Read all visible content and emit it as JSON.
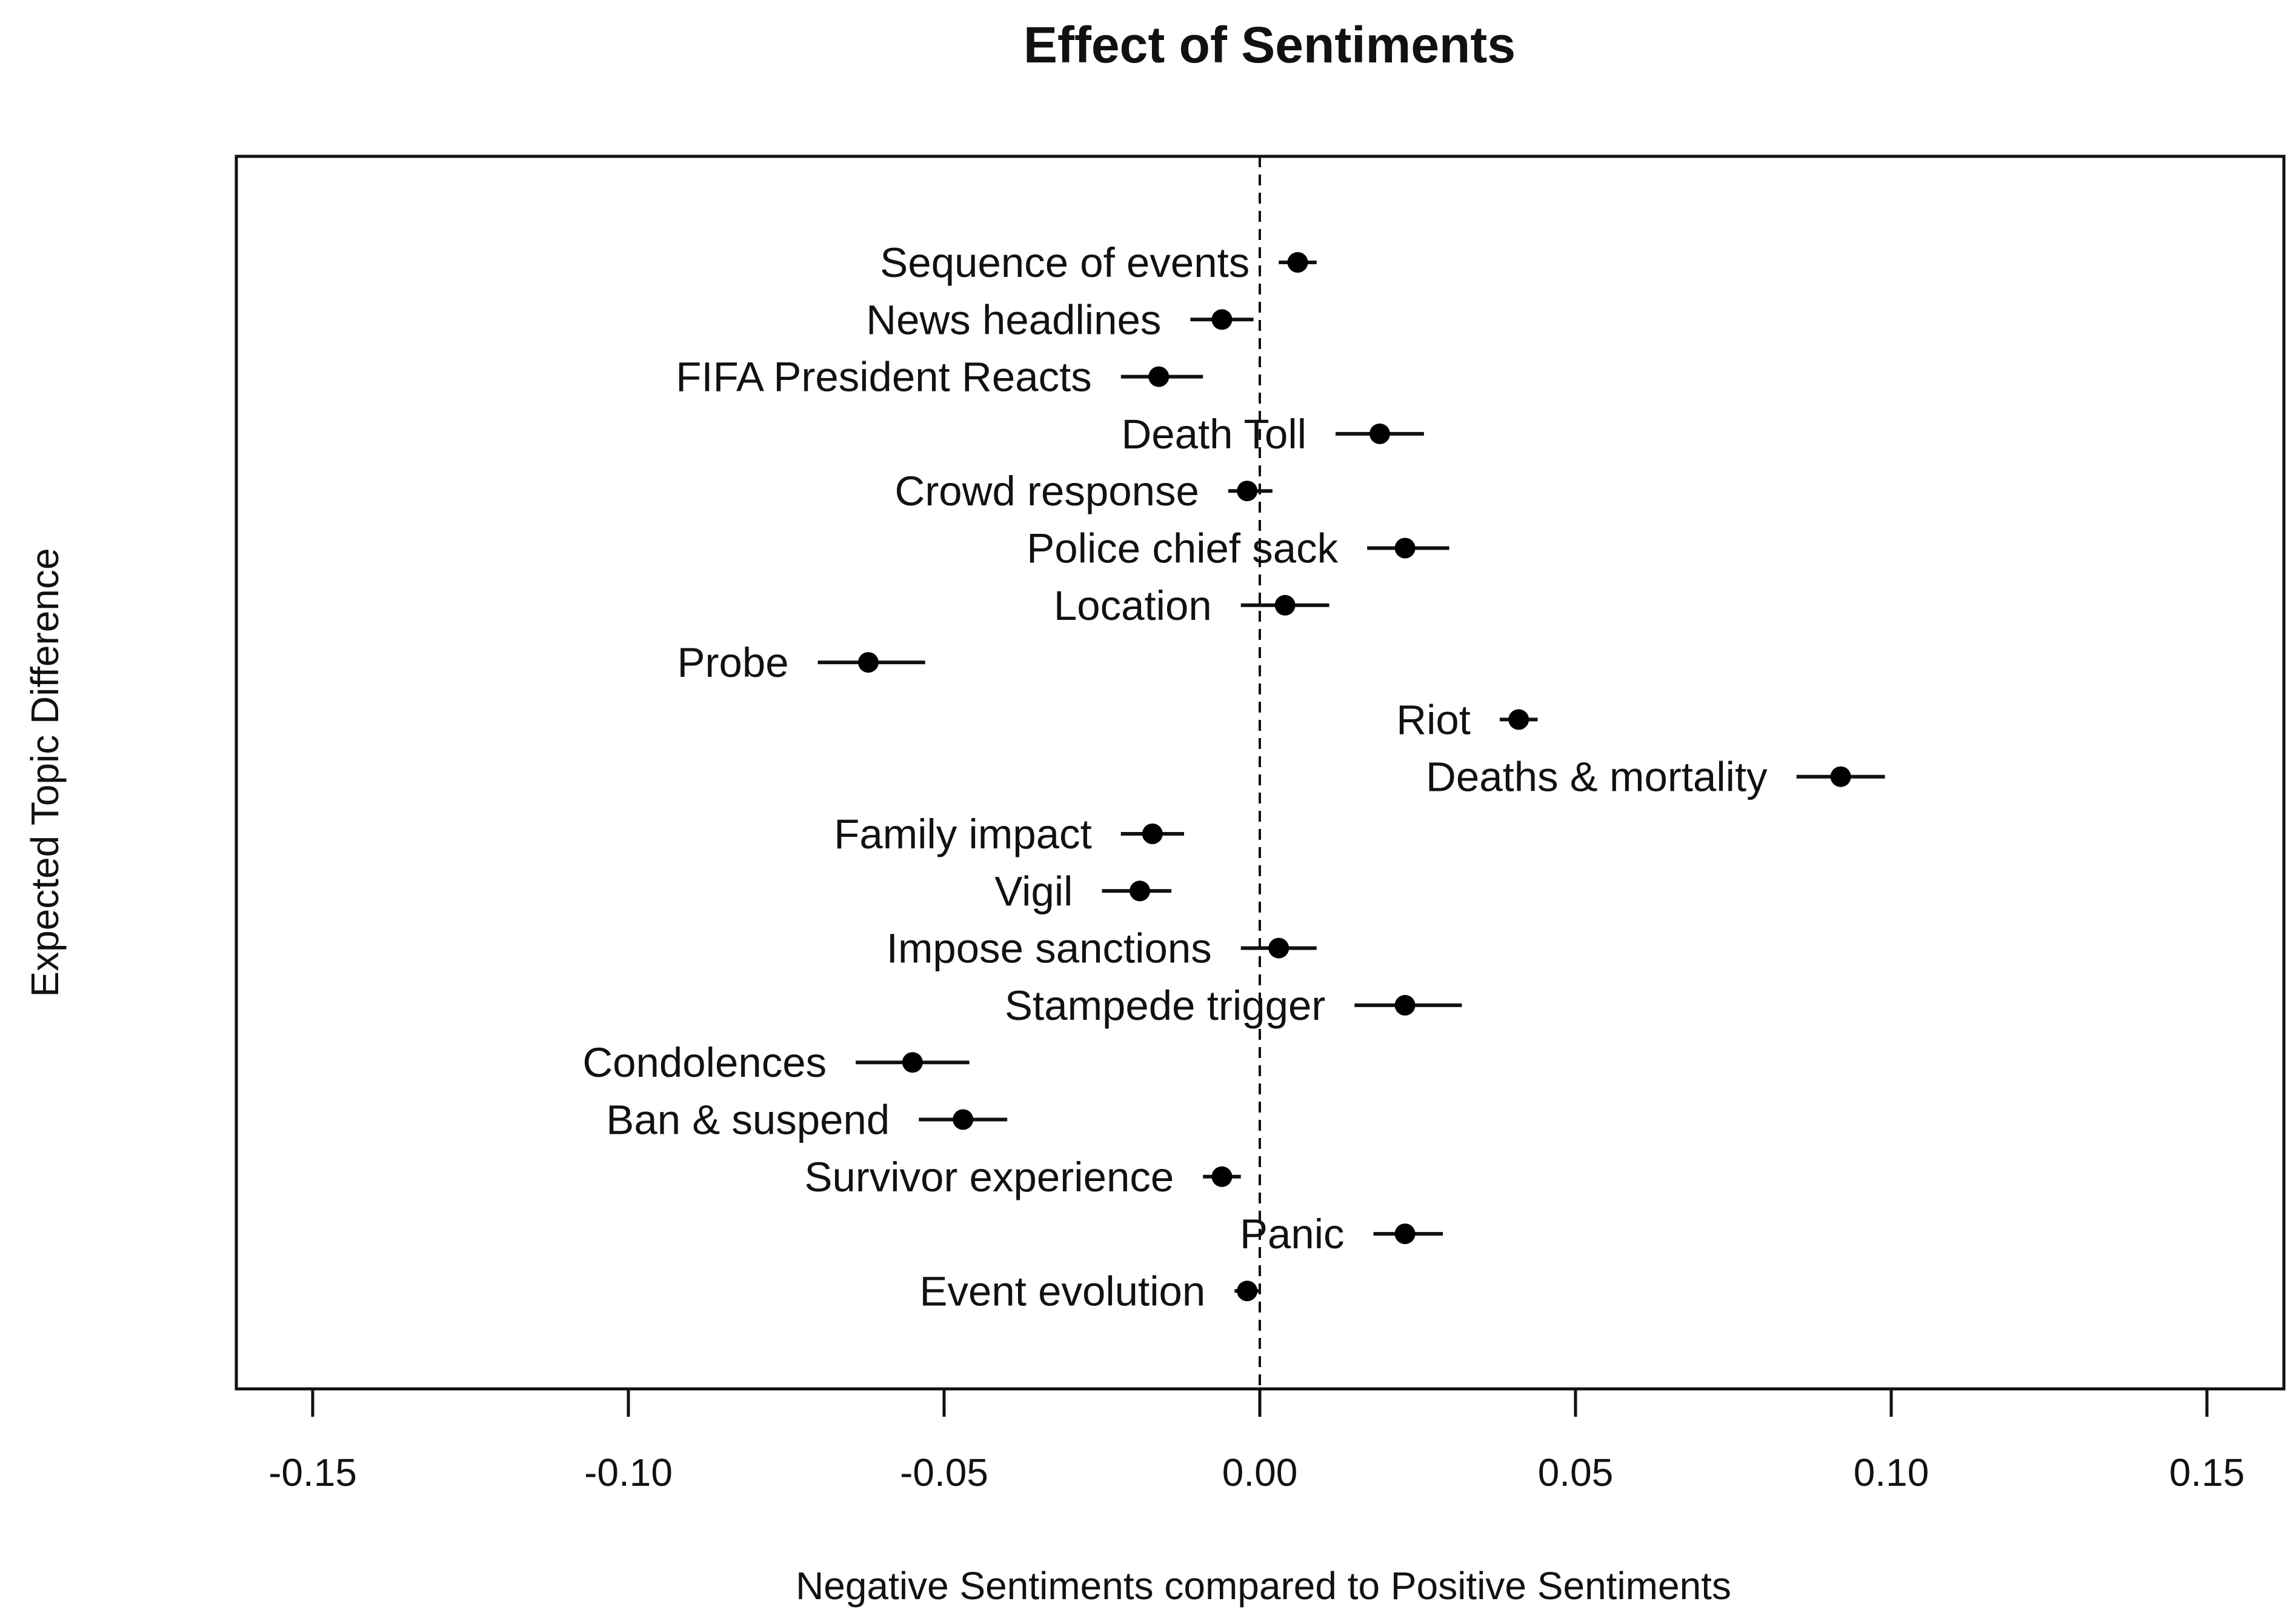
{
  "chart_data": {
    "type": "scatter",
    "subtype": "point-estimate-with-ci",
    "title": "Effect of Sentiments",
    "xlabel": "Negative Sentiments compared to Positive Sentiments",
    "ylabel": "Expected Topic Difference",
    "xlim": [
      -0.162,
      0.162
    ],
    "xticks": [
      -0.15,
      -0.1,
      -0.05,
      0.0,
      0.05,
      0.1,
      0.15
    ],
    "xtick_labels": [
      "-0.15",
      "-0.10",
      "-0.05",
      "0.00",
      "0.05",
      "0.10",
      "0.15"
    ],
    "reference_line": 0.0,
    "points": [
      {
        "label": "Sequence of events",
        "value": 0.006,
        "ci": [
          0.003,
          0.009
        ],
        "label_side": "left"
      },
      {
        "label": "News headlines",
        "value": -0.006,
        "ci": [
          -0.011,
          -0.001
        ],
        "label_side": "left"
      },
      {
        "label": "FIFA President Reacts",
        "value": -0.016,
        "ci": [
          -0.022,
          -0.009
        ],
        "label_side": "left"
      },
      {
        "label": "Death Toll",
        "value": 0.019,
        "ci": [
          0.012,
          0.026
        ],
        "label_side": "left"
      },
      {
        "label": "Crowd response",
        "value": -0.002,
        "ci": [
          -0.005,
          0.002
        ],
        "label_side": "left"
      },
      {
        "label": "Police chief sack",
        "value": 0.023,
        "ci": [
          0.017,
          0.03
        ],
        "label_side": "left"
      },
      {
        "label": "Location",
        "value": 0.004,
        "ci": [
          -0.003,
          0.011
        ],
        "label_side": "left"
      },
      {
        "label": "Probe",
        "value": -0.062,
        "ci": [
          -0.07,
          -0.053
        ],
        "label_side": "left"
      },
      {
        "label": "Riot",
        "value": 0.041,
        "ci": [
          0.038,
          0.044
        ],
        "label_side": "left"
      },
      {
        "label": "Deaths & mortality",
        "value": 0.092,
        "ci": [
          0.085,
          0.099
        ],
        "label_side": "left"
      },
      {
        "label": "Family impact",
        "value": -0.017,
        "ci": [
          -0.022,
          -0.012
        ],
        "label_side": "left"
      },
      {
        "label": "Vigil",
        "value": -0.019,
        "ci": [
          -0.025,
          -0.014
        ],
        "label_side": "left"
      },
      {
        "label": "Impose sanctions",
        "value": 0.003,
        "ci": [
          -0.003,
          0.009
        ],
        "label_side": "left"
      },
      {
        "label": "Stampede trigger",
        "value": 0.023,
        "ci": [
          0.015,
          0.032
        ],
        "label_side": "left"
      },
      {
        "label": "Condolences",
        "value": -0.055,
        "ci": [
          -0.064,
          -0.046
        ],
        "label_side": "left"
      },
      {
        "label": "Ban & suspend",
        "value": -0.047,
        "ci": [
          -0.054,
          -0.04
        ],
        "label_side": "left"
      },
      {
        "label": "Survivor experience",
        "value": -0.006,
        "ci": [
          -0.009,
          -0.003
        ],
        "label_side": "left"
      },
      {
        "label": "Panic",
        "value": 0.023,
        "ci": [
          0.018,
          0.029
        ],
        "label_side": "left"
      },
      {
        "label": "Event evolution",
        "value": -0.002,
        "ci": [
          -0.004,
          0.0
        ],
        "label_side": "left"
      }
    ]
  }
}
